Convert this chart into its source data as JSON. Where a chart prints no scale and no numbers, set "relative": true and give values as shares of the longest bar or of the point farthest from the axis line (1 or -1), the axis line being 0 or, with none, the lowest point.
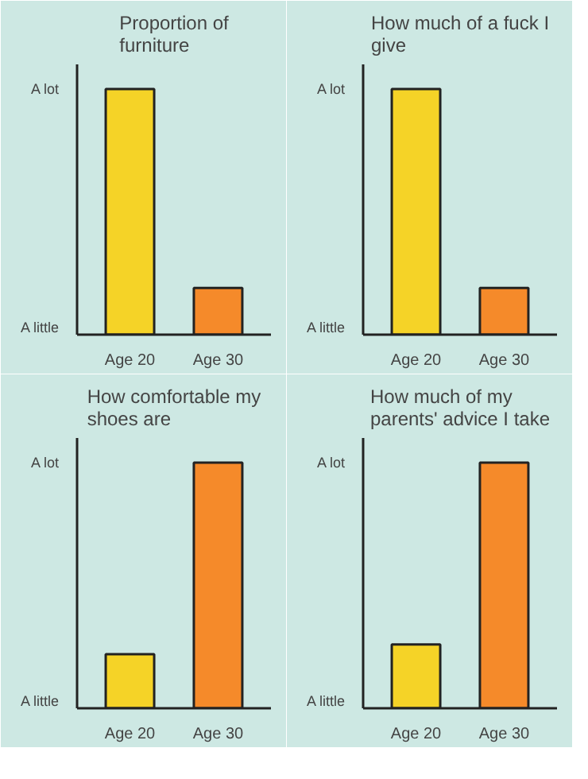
{
  "chart_data": [
    {
      "type": "bar",
      "title": "Proportion of furniture",
      "categories": [
        "Age 20",
        "Age 30"
      ],
      "relative": true,
      "annotations": [
        "A lot",
        "A little"
      ],
      "series": [
        {
          "colors": [
            "#f5d327",
            "#f58a2a"
          ],
          "values": [
            1,
            0.19
          ]
        }
      ]
    },
    {
      "type": "bar",
      "title": "How much of a fuck I give",
      "categories": [
        "Age 20",
        "Age 30"
      ],
      "relative": true,
      "annotations": [
        "A lot",
        "A little"
      ],
      "series": [
        {
          "colors": [
            "#f5d327",
            "#f58a2a"
          ],
          "values": [
            1,
            0.19
          ]
        }
      ]
    },
    {
      "type": "bar",
      "title": "How comfortable my shoes are",
      "categories": [
        "Age 20",
        "Age 30"
      ],
      "relative": true,
      "annotations": [
        "A lot",
        "A little"
      ],
      "series": [
        {
          "colors": [
            "#f5d327",
            "#f58a2a"
          ],
          "values": [
            0.22,
            1
          ]
        }
      ]
    },
    {
      "type": "bar",
      "title": "How much of my parents' advice I take",
      "categories": [
        "Age 20",
        "Age 30"
      ],
      "relative": true,
      "annotations": [
        "A lot",
        "A little"
      ],
      "series": [
        {
          "colors": [
            "#f5d327",
            "#f58a2a"
          ],
          "values": [
            0.26,
            1
          ]
        }
      ]
    }
  ]
}
